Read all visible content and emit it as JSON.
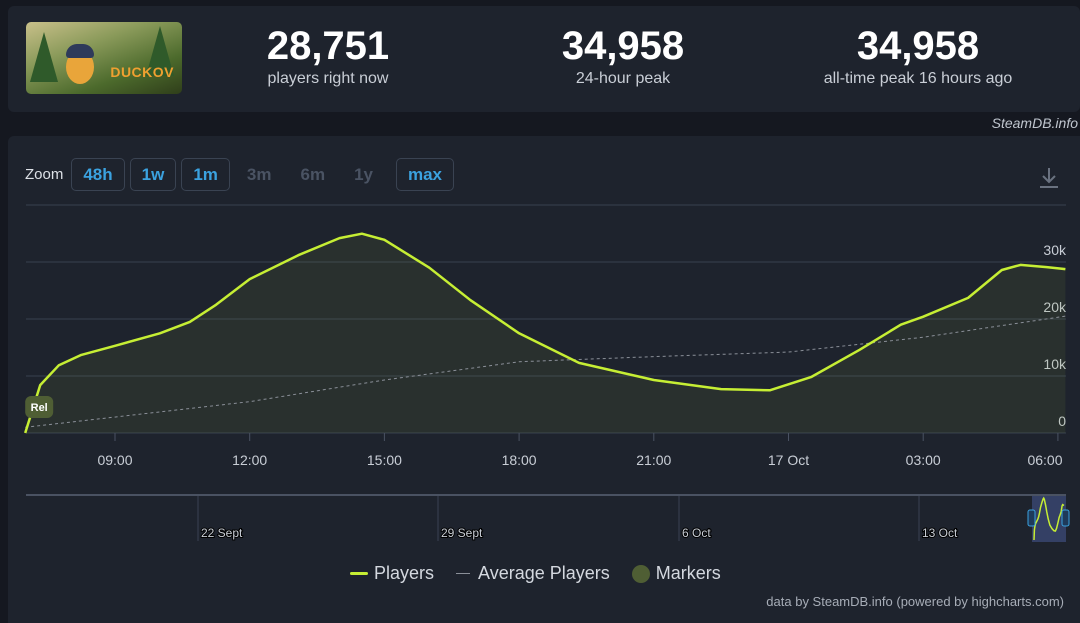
{
  "header": {
    "game_logo_text": "DUCKOV",
    "stats": [
      {
        "value": "28,751",
        "label": "players right now"
      },
      {
        "value": "34,958",
        "label": "24-hour peak"
      },
      {
        "value": "34,958",
        "label": "all-time peak 16 hours ago"
      }
    ],
    "credit": "SteamDB.info"
  },
  "zoom": {
    "label": "Zoom",
    "buttons": [
      {
        "label": "48h",
        "enabled": true
      },
      {
        "label": "1w",
        "enabled": true
      },
      {
        "label": "1m",
        "enabled": true
      },
      {
        "label": "3m",
        "enabled": false
      },
      {
        "label": "6m",
        "enabled": false
      },
      {
        "label": "1y",
        "enabled": false
      },
      {
        "label": "max",
        "enabled": true
      }
    ]
  },
  "marker_label": "Rel",
  "legend": {
    "players": "Players",
    "average": "Average Players",
    "markers": "Markers"
  },
  "credit": "data by SteamDB.info (powered by highcharts.com)",
  "colors": {
    "players": "#c6ee34",
    "average": "#8a8f98",
    "markers": "#4f5e34",
    "accent": "#3ba2e0"
  },
  "chart_data": {
    "type": "line",
    "xlabel": "",
    "ylabel": "",
    "ylim": [
      0,
      40000
    ],
    "yticks": [
      {
        "v": 0,
        "label": "0"
      },
      {
        "v": 10000,
        "label": "10k"
      },
      {
        "v": 20000,
        "label": "20k"
      },
      {
        "v": 30000,
        "label": "30k"
      }
    ],
    "xticks": [
      {
        "t": "16 Oct 09:00",
        "label": "09:00"
      },
      {
        "t": "16 Oct 12:00",
        "label": "12:00"
      },
      {
        "t": "16 Oct 15:00",
        "label": "15:00"
      },
      {
        "t": "16 Oct 18:00",
        "label": "18:00"
      },
      {
        "t": "16 Oct 21:00",
        "label": "21:00"
      },
      {
        "t": "17 Oct 00:00",
        "label": "17 Oct"
      },
      {
        "t": "17 Oct 03:00",
        "label": "03:00"
      },
      {
        "t": "17 Oct 06:00",
        "label": "06:00"
      }
    ],
    "grid": true,
    "legend_position": "bottom",
    "series": [
      {
        "name": "Players",
        "points": [
          [
            "16 Oct 07:00",
            0
          ],
          [
            "16 Oct 07:20",
            8400
          ],
          [
            "16 Oct 07:45",
            11900
          ],
          [
            "16 Oct 08:15",
            13700
          ],
          [
            "16 Oct 09:00",
            15300
          ],
          [
            "16 Oct 10:00",
            17500
          ],
          [
            "16 Oct 10:40",
            19500
          ],
          [
            "16 Oct 11:15",
            22500
          ],
          [
            "16 Oct 12:00",
            27000
          ],
          [
            "16 Oct 13:05",
            31200
          ],
          [
            "16 Oct 14:00",
            34200
          ],
          [
            "16 Oct 14:30",
            34958
          ],
          [
            "16 Oct 15:00",
            33900
          ],
          [
            "16 Oct 16:00",
            29000
          ],
          [
            "16 Oct 16:55",
            23300
          ],
          [
            "16 Oct 18:00",
            17500
          ],
          [
            "16 Oct 19:20",
            12300
          ],
          [
            "16 Oct 21:00",
            9300
          ],
          [
            "16 Oct 22:30",
            7700
          ],
          [
            "16 Oct 23:35",
            7500
          ],
          [
            "17 Oct 00:30",
            9800
          ],
          [
            "17 Oct 01:35",
            14600
          ],
          [
            "17 Oct 02:30",
            19000
          ],
          [
            "17 Oct 03:00",
            20400
          ],
          [
            "17 Oct 04:00",
            23700
          ],
          [
            "17 Oct 04:45",
            28600
          ],
          [
            "17 Oct 05:10",
            29500
          ],
          [
            "17 Oct 05:45",
            29100
          ],
          [
            "17 Oct 06:10",
            28751
          ]
        ]
      },
      {
        "name": "Average Players",
        "points": [
          [
            "16 Oct 07:00",
            1000
          ],
          [
            "16 Oct 12:00",
            5500
          ],
          [
            "16 Oct 15:00",
            9300
          ],
          [
            "16 Oct 18:00",
            12500
          ],
          [
            "16 Oct 21:00",
            13400
          ],
          [
            "17 Oct 00:00",
            14200
          ],
          [
            "17 Oct 03:00",
            16800
          ],
          [
            "17 Oct 06:10",
            20500
          ]
        ]
      }
    ],
    "markers": [
      {
        "t": "16 Oct 07:00",
        "label": "Rel"
      }
    ],
    "navigator": {
      "labels": [
        "22 Sept",
        "29 Sept",
        "6 Oct",
        "13 Oct"
      ]
    }
  }
}
